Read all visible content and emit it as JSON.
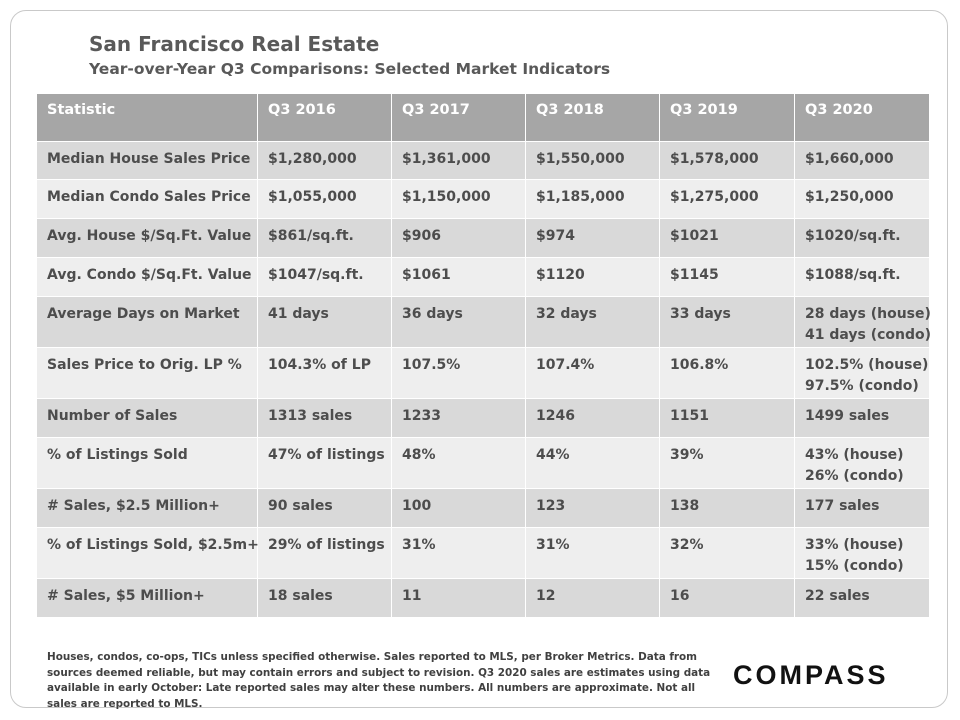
{
  "header": {
    "title": "San Francisco Real Estate",
    "subtitle": "Year-over-Year  Q3 Comparisons:  Selected Market Indicators"
  },
  "table": {
    "columns": [
      "Statistic",
      "Q3 2016",
      "Q3 2017",
      "Q3 2018",
      "Q3 2019",
      "Q3 2020"
    ],
    "rows": [
      [
        "Median House Sales Price",
        "$1,280,000",
        "$1,361,000",
        "$1,550,000",
        "$1,578,000",
        "$1,660,000"
      ],
      [
        "Median Condo Sales Price",
        "$1,055,000",
        "$1,150,000",
        "$1,185,000",
        "$1,275,000",
        "$1,250,000"
      ],
      [
        "Avg. House $/Sq.Ft. Value",
        "$861/sq.ft.",
        "$906",
        "$974",
        "$1021",
        "$1020/sq.ft."
      ],
      [
        "Avg. Condo $/Sq.Ft. Value",
        "$1047/sq.ft.",
        "$1061",
        "$1120",
        "$1145",
        "$1088/sq.ft."
      ],
      [
        "Average Days on Market",
        "41 days",
        "36 days",
        "32 days",
        "33 days",
        "28 days (house)\n41 days (condo)"
      ],
      [
        "Sales Price to Orig. LP %",
        "104.3% of LP",
        "107.5%",
        "107.4%",
        "106.8%",
        "102.5% (house)\n97.5% (condo)"
      ],
      [
        "Number of Sales",
        "1313 sales",
        "1233",
        "1246",
        "1151",
        "1499 sales"
      ],
      [
        "% of Listings Sold",
        "47% of listings",
        "48%",
        "44%",
        "39%",
        "43% (house)\n26% (condo)"
      ],
      [
        "# Sales, $2.5 Million+",
        "90 sales",
        "100",
        "123",
        "138",
        "177 sales"
      ],
      [
        "% of Listings Sold, $2.5m+",
        "29% of listings",
        "31%",
        "31%",
        "32%",
        "33% (house)\n15% (condo)"
      ],
      [
        "# Sales, $5 Million+",
        "18 sales",
        "11",
        "12",
        "16",
        "22 sales"
      ]
    ]
  },
  "footnote": "Houses, condos, co-ops, TICs unless specified otherwise. Sales reported to MLS, per Broker Metrics. Data from sources deemed reliable, but may contain errors and subject to revision. Q3 2020 sales are estimates using data available in early October: Late reported sales may alter these numbers. All numbers are approximate. Not all sales are reported to MLS.",
  "logo": "COMPASS"
}
